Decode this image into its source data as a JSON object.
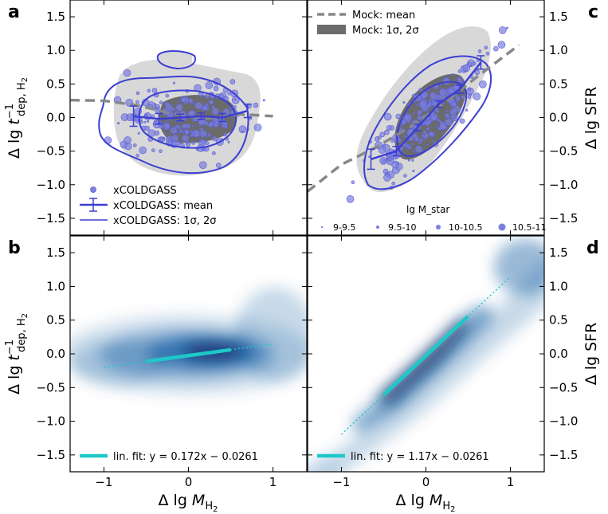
{
  "figure": {
    "panel_letters": [
      "a",
      "b",
      "c",
      "d"
    ],
    "colors": {
      "blue": "#3c3fd1",
      "mock_fill": "#d8d8d8",
      "mock_core": "#6b6b6b",
      "mock_line": "#888888",
      "fit_line": "#1ec8c8",
      "density": "#08519c"
    }
  },
  "chart_data": [
    {
      "panel": "a",
      "type": "scatter",
      "title": "",
      "xlabel": "",
      "ylabel": "Δ lg t_dep,H2^-1",
      "xlim": [
        -1.4,
        1.4
      ],
      "ylim": [
        -1.75,
        1.75
      ],
      "yticks": [
        "−1.5",
        "−1.0",
        "−0.5",
        "0.0",
        "0.5",
        "1.0",
        "1.5"
      ],
      "mock_mean": {
        "x": [
          -1.4,
          -1.0,
          -0.6,
          -0.2,
          0.2,
          0.6,
          1.0
        ],
        "y": [
          0.26,
          0.25,
          0.18,
          0.06,
          -0.02,
          0.05,
          0.02
        ]
      },
      "obs_mean": {
        "x": [
          -0.65,
          -0.35,
          -0.1,
          0.15,
          0.4,
          0.7
        ],
        "y": [
          0.02,
          -0.02,
          0.0,
          0.02,
          0.0,
          0.1
        ],
        "err": [
          0.15,
          0.08,
          0.05,
          0.05,
          0.06,
          0.1
        ]
      },
      "legend": [
        "xCOLDGASS",
        "xCOLDGASS: mean",
        "xCOLDGASS: 1σ, 2σ"
      ]
    },
    {
      "panel": "c",
      "type": "scatter",
      "xlabel": "",
      "ylabel": "Δ lg SFR",
      "xlim": [
        -1.4,
        1.4
      ],
      "ylim": [
        -1.75,
        1.75
      ],
      "yticks": [
        "−1.5",
        "−1.0",
        "−0.5",
        "0.0",
        "0.5",
        "1.0",
        "1.5"
      ],
      "mock_mean": {
        "x": [
          -1.4,
          -1.0,
          -0.6,
          -0.2,
          0.2,
          0.6,
          1.1
        ],
        "y": [
          -1.1,
          -0.7,
          -0.45,
          -0.15,
          0.2,
          0.6,
          1.08
        ]
      },
      "obs_mean": {
        "x": [
          -0.65,
          -0.35,
          -0.1,
          0.15,
          0.4,
          0.65
        ],
        "y": [
          -0.62,
          -0.5,
          -0.15,
          0.2,
          0.42,
          0.82
        ],
        "err": [
          0.15,
          0.07,
          0.05,
          0.05,
          0.06,
          0.1
        ]
      },
      "legend": [
        "Mock: mean",
        "Mock: 1σ, 2σ"
      ],
      "size_legend_title": "lg M_star",
      "size_legend": [
        "9-9.5",
        "9.5-10",
        "10-10.5",
        "10.5-11"
      ]
    },
    {
      "panel": "b",
      "type": "heatmap",
      "xlabel": "Δ lg M_H2",
      "ylabel": "Δ lg t_dep,H2^-1",
      "xlim": [
        -1.4,
        1.4
      ],
      "ylim": [
        -1.75,
        1.75
      ],
      "xticks": [
        "−1",
        "0",
        "1"
      ],
      "yticks": [
        "−1.5",
        "−1.0",
        "−0.5",
        "0.0",
        "0.5",
        "1.0",
        "1.5"
      ],
      "fit": {
        "slope": 0.172,
        "intercept": -0.0261,
        "solid_range": [
          -0.5,
          0.5
        ],
        "dotted_range": [
          -1.0,
          1.0
        ]
      },
      "legend": [
        "lin. fit: y = 0.172x − 0.0261"
      ]
    },
    {
      "panel": "d",
      "type": "heatmap",
      "xlabel": "Δ lg M_H2",
      "ylabel": "Δ lg SFR",
      "xlim": [
        -1.4,
        1.4
      ],
      "ylim": [
        -1.75,
        1.75
      ],
      "xticks": [
        "−1",
        "0",
        "1"
      ],
      "yticks": [
        "−1.5",
        "−1.0",
        "−0.5",
        "0.0",
        "0.5",
        "1.0",
        "1.5"
      ],
      "fit": {
        "slope": 1.17,
        "intercept": -0.0261,
        "solid_range": [
          -0.5,
          0.5
        ],
        "dotted_range": [
          -1.0,
          1.0
        ]
      },
      "legend": [
        "lin. fit: y = 1.17x − 0.0261"
      ]
    }
  ]
}
